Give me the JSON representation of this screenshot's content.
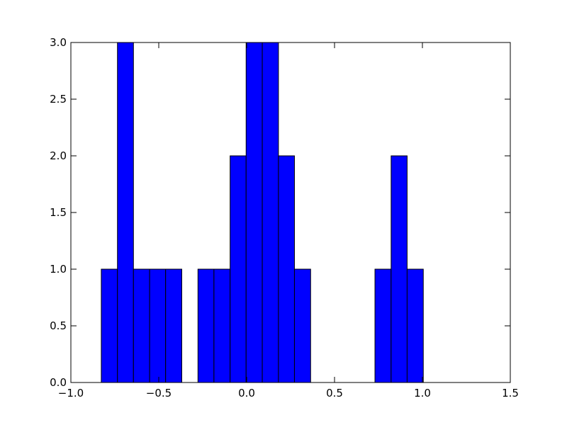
{
  "chart_data": {
    "type": "histogram",
    "color": "#0000ff",
    "bins": [
      -0.827,
      -0.735,
      -0.644,
      -0.552,
      -0.461,
      -0.369,
      -0.277,
      -0.186,
      -0.094,
      -0.003,
      0.089,
      0.181,
      0.272,
      0.364,
      0.455,
      0.547,
      0.639,
      0.73,
      0.822,
      0.913,
      1.005
    ],
    "values": [
      1,
      3,
      1,
      1,
      1,
      0,
      1,
      1,
      2,
      3,
      3,
      2,
      1,
      0,
      0,
      0,
      0,
      1,
      2,
      1
    ],
    "xlim": [
      -1.0,
      1.5
    ],
    "xticks": [
      {
        "value": -1.0,
        "label": "−1.0"
      },
      {
        "value": -0.5,
        "label": "−0.5"
      },
      {
        "value": 0,
        "label": "0.0"
      },
      {
        "value": 0.5,
        "label": "0.5"
      },
      {
        "value": 1,
        "label": "1.0"
      },
      {
        "value": 1.5,
        "label": "1.5"
      }
    ],
    "ylim": [
      0,
      3
    ],
    "yticks": [
      {
        "value": 0,
        "label": "0.0"
      },
      {
        "value": 0.5,
        "label": "0.5"
      },
      {
        "value": 1,
        "label": "1.0"
      },
      {
        "value": 1.5,
        "label": "1.5"
      },
      {
        "value": 2,
        "label": "2.0"
      },
      {
        "value": 2.5,
        "label": "2.5"
      },
      {
        "value": 3,
        "label": "3.0"
      }
    ]
  }
}
